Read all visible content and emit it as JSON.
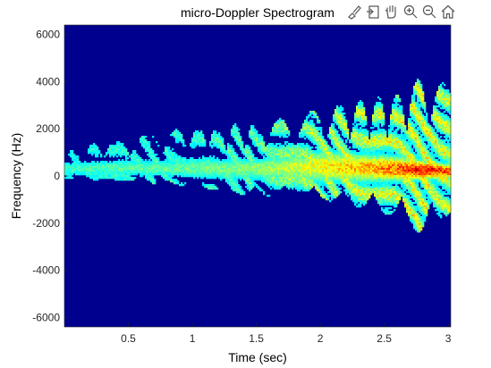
{
  "toolbar": {
    "icons": [
      "brush-icon",
      "export-icon",
      "pan-hand-icon",
      "zoom-in-icon",
      "zoom-out-icon",
      "home-icon"
    ]
  },
  "chart_data": {
    "type": "heatmap",
    "title": "micro-Doppler Spectrogram",
    "xlabel": "Time (sec)",
    "ylabel": "Frequency (Hz)",
    "xlim": [
      0.0,
      3.02
    ],
    "ylim": [
      -6400,
      6400
    ],
    "x_ticks": [
      0.5,
      1,
      1.5,
      2,
      2.5,
      3
    ],
    "x_tick_labels": [
      "0.5",
      "1",
      "1.5",
      "2",
      "2.5",
      "3"
    ],
    "y_ticks": [
      -6000,
      -4000,
      -2000,
      0,
      2000,
      4000,
      6000
    ],
    "y_tick_labels": [
      "-6000",
      "-4000",
      "-2000",
      "0",
      "2000",
      "4000",
      "6000"
    ],
    "colormap": "jet",
    "background_color": "#00008f",
    "grid": false,
    "features": [
      {
        "name": "torso",
        "x": [
          0.05,
          0.5,
          1.0,
          1.5,
          1.8,
          2.0,
          2.3,
          2.6,
          2.8,
          3.0
        ],
        "center_hz": [
          300,
          350,
          300,
          300,
          350,
          400,
          350,
          300,
          250,
          200
        ],
        "spread_hz": [
          400,
          450,
          500,
          600,
          700,
          800,
          700,
          600,
          450,
          350
        ],
        "intensity": [
          0.35,
          0.38,
          0.4,
          0.45,
          0.55,
          0.62,
          0.72,
          0.85,
          0.98,
          0.92
        ]
      },
      {
        "name": "limbs",
        "x": [
          0.05,
          0.5,
          1.0,
          1.5,
          1.8,
          2.0,
          2.3,
          2.6,
          2.8,
          3.0
        ],
        "max_hz": [
          1000,
          1500,
          1800,
          2000,
          2200,
          2500,
          2800,
          3000,
          3700,
          3400
        ],
        "min_hz": [
          -100,
          -200,
          -400,
          -800,
          -700,
          -900,
          -1200,
          -1600,
          -2300,
          -1500
        ],
        "intensity": [
          0.3,
          0.33,
          0.36,
          0.42,
          0.5,
          0.56,
          0.6,
          0.62,
          0.66,
          0.6
        ]
      }
    ]
  }
}
